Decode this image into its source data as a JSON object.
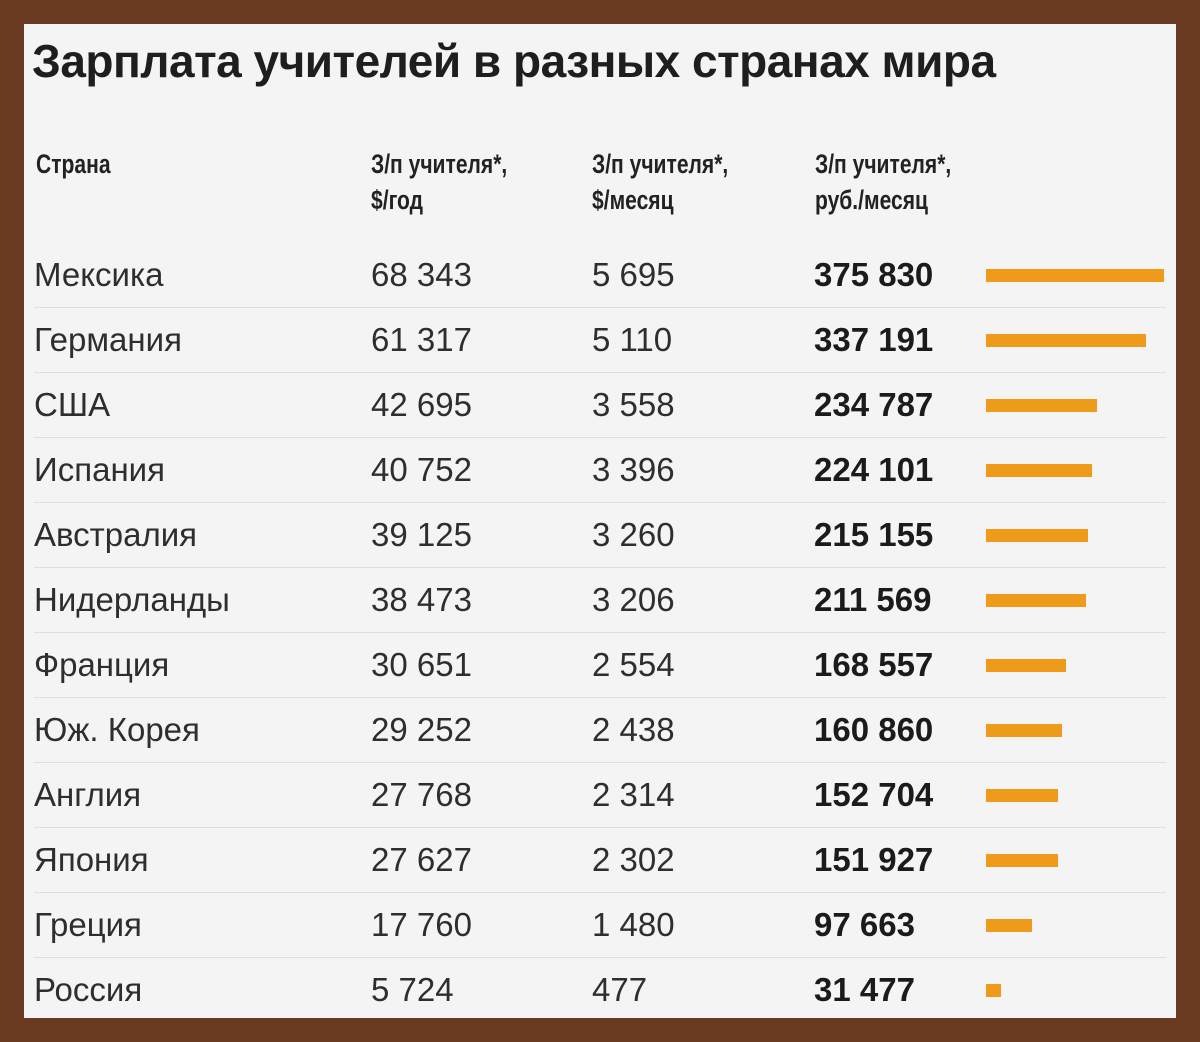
{
  "title": "Зарплата учителей в разных странах мира",
  "headers": {
    "country": "Страна",
    "year_line1": "З/п учителя*,",
    "year_line2": "$/год",
    "month_line1": "З/п учителя*,",
    "month_line2": "$/месяц",
    "rub_line1": "З/п учителя*,",
    "rub_line2": "руб./месяц"
  },
  "colors": {
    "bar": "#ee9a1a",
    "frame": "#6b3a22",
    "background": "#f4f4f4"
  },
  "chart_data": {
    "type": "table",
    "rows": [
      {
        "country": "Мексика",
        "usd_year": "68 343",
        "usd_month": "5 695",
        "rub_month": "375 830",
        "value": 375830
      },
      {
        "country": "Германия",
        "usd_year": "61 317",
        "usd_month": "5 110",
        "rub_month": "337 191",
        "value": 337191
      },
      {
        "country": "США",
        "usd_year": "42 695",
        "usd_month": "3 558",
        "rub_month": "234 787",
        "value": 234787
      },
      {
        "country": "Испания",
        "usd_year": "40 752",
        "usd_month": "3 396",
        "rub_month": "224 101",
        "value": 224101
      },
      {
        "country": "Австралия",
        "usd_year": "39 125",
        "usd_month": "3 260",
        "rub_month": "215 155",
        "value": 215155
      },
      {
        "country": "Нидерланды",
        "usd_year": "38 473",
        "usd_month": "3 206",
        "rub_month": "211 569",
        "value": 211569
      },
      {
        "country": "Франция",
        "usd_year": "30 651",
        "usd_month": "2 554",
        "rub_month": "168 557",
        "value": 168557
      },
      {
        "country": "Юж. Корея",
        "usd_year": "29 252",
        "usd_month": "2 438",
        "rub_month": "160 860",
        "value": 160860
      },
      {
        "country": "Англия",
        "usd_year": "27 768",
        "usd_month": "2 314",
        "rub_month": "152 704",
        "value": 152704
      },
      {
        "country": "Япония",
        "usd_year": "27 627",
        "usd_month": "2 302",
        "rub_month": "151 927",
        "value": 151927
      },
      {
        "country": "Греция",
        "usd_year": "17 760",
        "usd_month": "1 480",
        "rub_month": "97 663",
        "value": 97663
      },
      {
        "country": "Россия",
        "usd_year": "5 724",
        "usd_month": "477",
        "rub_month": "31 477",
        "value": 31477
      }
    ]
  }
}
